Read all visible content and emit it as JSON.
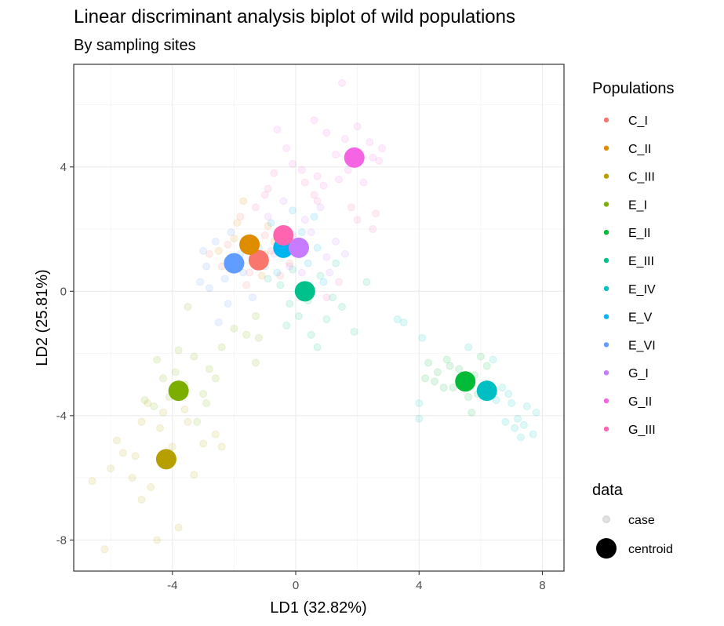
{
  "chart_data": {
    "type": "scatter",
    "title": "Linear discriminant analysis biplot of wild populations",
    "subtitle": "By sampling sites",
    "xlabel": "LD1 (32.82%)",
    "ylabel": "LD2 (25.81%)",
    "xlim": [
      -7.2,
      8.7
    ],
    "ylim": [
      -9.0,
      7.3
    ],
    "x_ticks": [
      -4,
      0,
      4,
      8
    ],
    "x_tick_labels": [
      "-4",
      "0",
      "4",
      "8"
    ],
    "y_ticks": [
      -8,
      -4,
      0,
      4
    ],
    "y_tick_labels": [
      "-8",
      "-4",
      "0",
      "4"
    ],
    "grid": true,
    "legend_position": "right",
    "legend": {
      "populations_title": "Populations",
      "data_title": "data",
      "data_items": [
        {
          "label": "case",
          "color": "#d9d9d9"
        },
        {
          "label": "centroid",
          "color": "#000000"
        }
      ]
    },
    "series": [
      {
        "name": "C_I",
        "color": "#F8766D",
        "centroid": [
          -1.2,
          1.0
        ],
        "cases": [
          [
            -2.8,
            1.2
          ],
          [
            -2.2,
            1.5
          ],
          [
            -1.8,
            2.4
          ],
          [
            -1.5,
            0.6
          ],
          [
            -1.0,
            1.8
          ],
          [
            -0.8,
            1.3
          ],
          [
            -0.5,
            0.5
          ],
          [
            -1.6,
            0.2
          ],
          [
            -2.4,
            0.8
          ],
          [
            -1.3,
            1.6
          ],
          [
            -0.6,
            1.9
          ],
          [
            -0.2,
            0.9
          ]
        ]
      },
      {
        "name": "C_II",
        "color": "#DE8C00",
        "centroid": [
          -1.5,
          1.5
        ],
        "cases": [
          [
            -1.7,
            2.9
          ],
          [
            -2.5,
            1.3
          ],
          [
            -2.0,
            1.7
          ],
          [
            -1.0,
            1.2
          ],
          [
            -0.9,
            2.1
          ],
          [
            -1.3,
            0.9
          ],
          [
            -2.2,
            1.0
          ],
          [
            -0.7,
            1.6
          ],
          [
            -1.9,
            2.2
          ],
          [
            -1.1,
            0.5
          ]
        ]
      },
      {
        "name": "C_III",
        "color": "#B79F00",
        "centroid": [
          -4.2,
          -5.4
        ],
        "cases": [
          [
            -6.6,
            -6.1
          ],
          [
            -6.2,
            -8.3
          ],
          [
            -5.8,
            -4.8
          ],
          [
            -5.3,
            -6.0
          ],
          [
            -5.2,
            -5.3
          ],
          [
            -5.0,
            -6.7
          ],
          [
            -4.7,
            -6.3
          ],
          [
            -4.5,
            -8.0
          ],
          [
            -4.4,
            -4.4
          ],
          [
            -4.3,
            -3.9
          ],
          [
            -4.0,
            -5.0
          ],
          [
            -3.8,
            -7.6
          ],
          [
            -3.5,
            -4.2
          ],
          [
            -3.3,
            -5.9
          ],
          [
            -3.0,
            -4.9
          ],
          [
            -2.6,
            -4.6
          ],
          [
            -2.4,
            -5.0
          ],
          [
            -5.6,
            -5.2
          ],
          [
            -3.6,
            -3.8
          ],
          [
            -4.8,
            -3.6
          ],
          [
            -6.0,
            -5.7
          ],
          [
            -5.0,
            -4.2
          ]
        ]
      },
      {
        "name": "E_I",
        "color": "#7CAE00",
        "centroid": [
          -3.8,
          -3.2
        ],
        "cases": [
          [
            -4.9,
            -3.5
          ],
          [
            -4.6,
            -3.7
          ],
          [
            -4.3,
            -2.8
          ],
          [
            -4.1,
            -3.4
          ],
          [
            -3.9,
            -2.6
          ],
          [
            -3.6,
            -3.0
          ],
          [
            -3.3,
            -2.1
          ],
          [
            -3.0,
            -3.3
          ],
          [
            -2.8,
            -2.5
          ],
          [
            -2.4,
            -1.8
          ],
          [
            -3.5,
            -0.5
          ],
          [
            -2.0,
            -1.2
          ],
          [
            -1.6,
            -1.4
          ],
          [
            -1.3,
            -0.8
          ],
          [
            -1.2,
            -1.5
          ],
          [
            -1.3,
            -2.3
          ],
          [
            -3.2,
            -4.2
          ],
          [
            -2.9,
            -3.6
          ],
          [
            -4.5,
            -2.2
          ],
          [
            -3.8,
            -1.9
          ],
          [
            -2.6,
            -2.8
          ]
        ]
      },
      {
        "name": "E_II",
        "color": "#00BA38",
        "centroid": [
          5.5,
          -2.9
        ],
        "cases": [
          [
            4.3,
            -2.3
          ],
          [
            4.6,
            -2.6
          ],
          [
            4.9,
            -2.2
          ],
          [
            5.1,
            -3.1
          ],
          [
            5.3,
            -2.5
          ],
          [
            5.6,
            -3.4
          ],
          [
            5.8,
            -2.7
          ],
          [
            6.0,
            -2.1
          ],
          [
            5.4,
            -3.0
          ],
          [
            4.5,
            -2.9
          ],
          [
            5.7,
            -3.9
          ],
          [
            4.2,
            -2.8
          ],
          [
            5.9,
            -3.3
          ],
          [
            6.2,
            -2.4
          ],
          [
            5.0,
            -2.4
          ],
          [
            4.8,
            -3.1
          ]
        ]
      },
      {
        "name": "E_III",
        "color": "#00C08B",
        "centroid": [
          0.3,
          0.0
        ],
        "cases": [
          [
            -0.5,
            0.2
          ],
          [
            -0.2,
            -0.4
          ],
          [
            0.4,
            -0.3
          ],
          [
            0.8,
            0.5
          ],
          [
            1.2,
            -0.2
          ],
          [
            -0.3,
            -1.1
          ],
          [
            0.5,
            -1.4
          ],
          [
            1.5,
            -0.5
          ],
          [
            -0.1,
            0.7
          ],
          [
            1.0,
            -0.9
          ],
          [
            2.3,
            0.3
          ],
          [
            1.9,
            -1.3
          ],
          [
            0.1,
            -0.8
          ],
          [
            1.3,
            0.9
          ],
          [
            -0.9,
            0.4
          ],
          [
            0.7,
            -1.8
          ]
        ]
      },
      {
        "name": "E_IV",
        "color": "#00BFC4",
        "centroid": [
          6.2,
          -3.2
        ],
        "cases": [
          [
            7.0,
            -3.6
          ],
          [
            7.2,
            -4.1
          ],
          [
            7.5,
            -3.7
          ],
          [
            7.8,
            -3.9
          ],
          [
            7.7,
            -4.6
          ],
          [
            7.3,
            -4.7
          ],
          [
            6.8,
            -4.2
          ],
          [
            6.5,
            -3.5
          ],
          [
            6.9,
            -3.3
          ],
          [
            7.4,
            -4.3
          ],
          [
            3.5,
            -1.0
          ],
          [
            4.1,
            -1.5
          ],
          [
            4.0,
            -3.6
          ],
          [
            4.0,
            -4.1
          ],
          [
            6.4,
            -2.2
          ],
          [
            6.7,
            -3.1
          ],
          [
            3.3,
            -0.9
          ],
          [
            5.6,
            -1.8
          ],
          [
            7.1,
            -4.4
          ]
        ]
      },
      {
        "name": "E_V",
        "color": "#00B4F0",
        "centroid": [
          -0.4,
          1.4
        ],
        "cases": [
          [
            -0.1,
            2.6
          ],
          [
            -0.8,
            2.2
          ],
          [
            -1.0,
            0.8
          ],
          [
            0.2,
            1.9
          ],
          [
            0.4,
            0.9
          ],
          [
            -0.6,
            0.6
          ],
          [
            0.7,
            1.4
          ],
          [
            -0.3,
            2.0
          ],
          [
            0.9,
            0.3
          ],
          [
            -1.2,
            1.4
          ],
          [
            0.1,
            0.1
          ],
          [
            0.6,
            2.4
          ]
        ]
      },
      {
        "name": "E_VI",
        "color": "#619CFF",
        "centroid": [
          -2.0,
          0.9
        ],
        "cases": [
          [
            -2.9,
            0.8
          ],
          [
            -2.6,
            1.6
          ],
          [
            -2.3,
            0.4
          ],
          [
            -1.7,
            0.6
          ],
          [
            -2.8,
            0.1
          ],
          [
            -2.1,
            1.9
          ],
          [
            -3.0,
            1.3
          ],
          [
            -1.4,
            -0.2
          ],
          [
            -2.5,
            -1.0
          ],
          [
            -1.8,
            1.2
          ],
          [
            -2.2,
            -0.4
          ],
          [
            -3.1,
            0.3
          ]
        ]
      },
      {
        "name": "G_I",
        "color": "#C77CFF",
        "centroid": [
          0.1,
          1.4
        ],
        "cases": [
          [
            -0.9,
            2.4
          ],
          [
            -0.5,
            1.7
          ],
          [
            0.5,
            1.9
          ],
          [
            1.0,
            1.1
          ],
          [
            0.3,
            2.3
          ],
          [
            -0.2,
            0.8
          ],
          [
            1.3,
            1.6
          ],
          [
            -0.7,
            1.2
          ],
          [
            0.8,
            2.7
          ],
          [
            1.6,
            1.2
          ],
          [
            -0.4,
            2.9
          ],
          [
            0.2,
            0.6
          ],
          [
            1.1,
            0.6
          ],
          [
            -0.1,
            1.8
          ]
        ]
      },
      {
        "name": "G_II",
        "color": "#F564E3",
        "centroid": [
          1.9,
          4.3
        ],
        "cases": [
          [
            1.5,
            6.7
          ],
          [
            2.0,
            5.3
          ],
          [
            2.4,
            4.8
          ],
          [
            2.8,
            4.6
          ],
          [
            2.7,
            4.2
          ],
          [
            1.3,
            4.4
          ],
          [
            1.0,
            5.1
          ],
          [
            0.6,
            5.5
          ],
          [
            0.2,
            3.9
          ],
          [
            -0.3,
            4.6
          ],
          [
            0.7,
            3.7
          ],
          [
            1.7,
            3.9
          ],
          [
            2.2,
            3.5
          ],
          [
            1.4,
            3.6
          ],
          [
            -0.6,
            5.2
          ],
          [
            -0.1,
            4.1
          ],
          [
            1.6,
            4.9
          ],
          [
            2.5,
            4.3
          ],
          [
            0.9,
            3.4
          ]
        ]
      },
      {
        "name": "G_III",
        "color": "#FF64B0",
        "centroid": [
          -0.4,
          1.8
        ],
        "cases": [
          [
            2.5,
            2.0
          ],
          [
            2.6,
            2.5
          ],
          [
            2.0,
            2.3
          ],
          [
            -0.9,
            3.3
          ],
          [
            0.7,
            2.9
          ],
          [
            -1.0,
            3.1
          ],
          [
            1.4,
            0.3
          ],
          [
            1.0,
            -0.2
          ],
          [
            0.3,
            3.5
          ],
          [
            -1.3,
            2.7
          ],
          [
            1.8,
            2.7
          ],
          [
            0.6,
            3.1
          ],
          [
            -0.7,
            3.8
          ]
        ]
      }
    ]
  }
}
